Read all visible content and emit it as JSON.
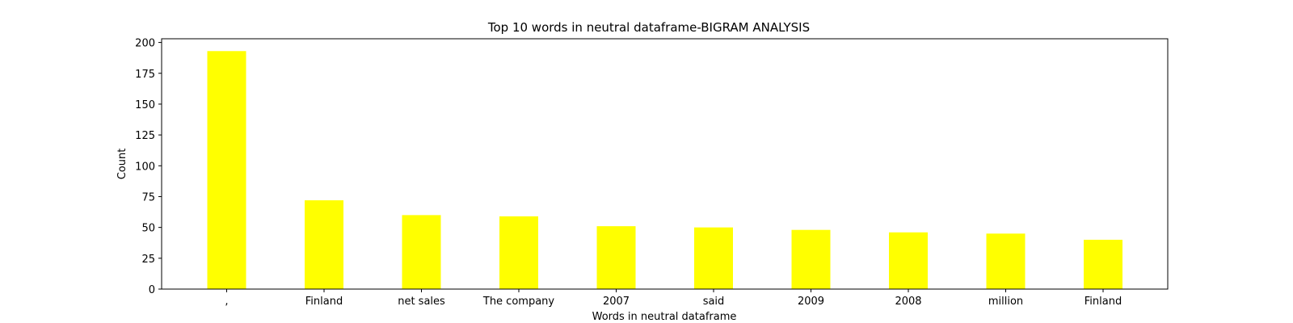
{
  "chart_data": {
    "type": "bar",
    "title": "Top 10 words in neutral dataframe-BIGRAM ANALYSIS",
    "xlabel": "Words in neutral dataframe",
    "ylabel": "Count",
    "categories": [
      ",",
      "Finland",
      "net sales",
      "The company",
      "2007",
      "said",
      "2009",
      "2008",
      "million",
      "Finland"
    ],
    "values": [
      193,
      72,
      60,
      59,
      51,
      50,
      48,
      46,
      45,
      40
    ],
    "ylim": [
      0,
      203
    ],
    "yticks": [
      0,
      25,
      50,
      75,
      100,
      125,
      150,
      175,
      200
    ],
    "grid": false,
    "bar_color": "#ffff00"
  }
}
